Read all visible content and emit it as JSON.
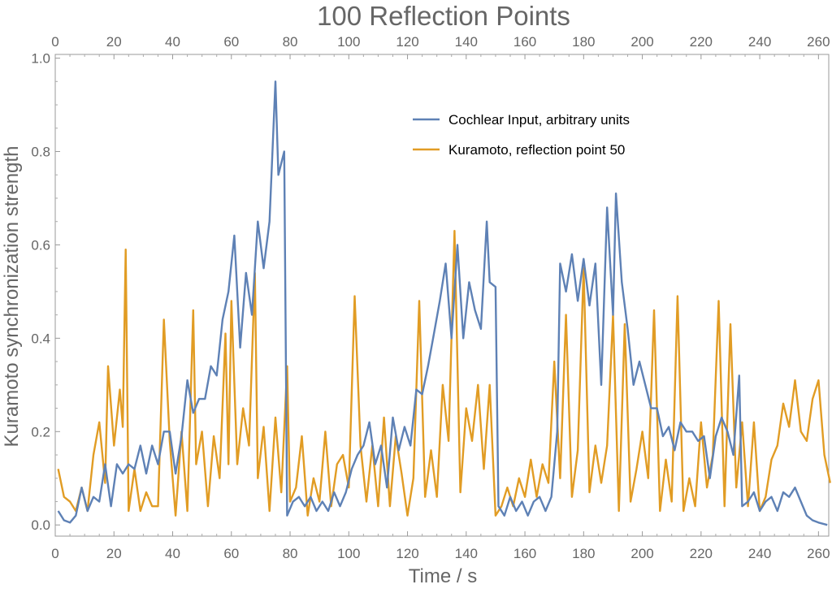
{
  "chart_data": {
    "type": "line",
    "title": "100 Reflection Points",
    "xlabel": "Time / s",
    "ylabel": "Kuramoto synchronization strength",
    "xlim": [
      0,
      263.5
    ],
    "ylim": [
      -0.024,
      1.008
    ],
    "xticks": [
      0,
      20,
      40,
      60,
      80,
      100,
      120,
      140,
      160,
      180,
      200,
      220,
      240,
      260
    ],
    "xtick_labels": [
      "0",
      "20",
      "40",
      "60",
      "80",
      "100",
      "120",
      "140",
      "160",
      "180",
      "200",
      "220",
      "240",
      "260"
    ],
    "yticks": [
      0,
      0.2,
      0.4,
      0.6,
      0.8,
      1.0
    ],
    "ytick_labels": [
      "0.0",
      "0.2",
      "0.4",
      "0.6",
      "0.8",
      "1.0"
    ],
    "grid": false,
    "legend_position": "top-center",
    "series": [
      {
        "name": "Cochlear Input, arbitrary units",
        "color": "#5e81b5",
        "x": [
          1,
          3,
          5,
          7,
          9,
          11,
          13,
          15,
          17,
          19,
          21,
          23,
          25,
          27,
          29,
          31,
          33,
          35,
          37,
          39,
          41,
          43,
          45,
          47,
          49,
          51,
          53,
          55,
          57,
          59,
          61,
          63,
          65,
          67,
          69,
          71,
          73,
          75,
          76,
          78,
          79,
          81,
          83,
          85,
          87,
          89,
          91,
          93,
          95,
          97,
          99,
          101,
          103,
          105,
          107,
          109,
          111,
          113,
          115,
          117,
          119,
          121,
          123,
          125,
          127,
          129,
          131,
          133,
          135,
          137,
          139,
          141,
          143,
          145,
          147,
          148,
          150,
          151,
          153,
          155,
          157,
          159,
          161,
          163,
          165,
          167,
          169,
          171,
          172,
          174,
          176,
          178,
          180,
          182,
          184,
          186,
          188,
          190,
          191,
          193,
          195,
          197,
          199,
          201,
          203,
          205,
          207,
          209,
          211,
          213,
          215,
          217,
          219,
          221,
          223,
          225,
          227,
          229,
          231,
          233,
          234,
          236,
          238,
          240,
          242,
          244,
          246,
          248,
          250,
          252,
          254,
          256,
          258,
          260,
          263
        ],
        "y": [
          0.03,
          0.01,
          0.005,
          0.02,
          0.08,
          0.03,
          0.06,
          0.05,
          0.13,
          0.04,
          0.13,
          0.11,
          0.13,
          0.12,
          0.17,
          0.11,
          0.17,
          0.13,
          0.2,
          0.2,
          0.11,
          0.19,
          0.31,
          0.24,
          0.27,
          0.27,
          0.34,
          0.32,
          0.44,
          0.5,
          0.62,
          0.38,
          0.54,
          0.45,
          0.65,
          0.55,
          0.65,
          0.95,
          0.75,
          0.8,
          0.02,
          0.05,
          0.06,
          0.04,
          0.06,
          0.03,
          0.05,
          0.03,
          0.07,
          0.04,
          0.07,
          0.12,
          0.15,
          0.17,
          0.22,
          0.13,
          0.17,
          0.08,
          0.23,
          0.16,
          0.21,
          0.17,
          0.29,
          0.28,
          0.34,
          0.41,
          0.48,
          0.56,
          0.4,
          0.6,
          0.4,
          0.52,
          0.46,
          0.42,
          0.65,
          0.52,
          0.51,
          0.04,
          0.02,
          0.06,
          0.03,
          0.05,
          0.02,
          0.05,
          0.06,
          0.03,
          0.06,
          0.2,
          0.56,
          0.5,
          0.58,
          0.48,
          0.57,
          0.47,
          0.56,
          0.3,
          0.68,
          0.45,
          0.71,
          0.52,
          0.42,
          0.3,
          0.35,
          0.3,
          0.25,
          0.25,
          0.19,
          0.21,
          0.16,
          0.22,
          0.2,
          0.2,
          0.18,
          0.19,
          0.1,
          0.19,
          0.23,
          0.2,
          0.15,
          0.32,
          0.04,
          0.05,
          0.07,
          0.03,
          0.05,
          0.06,
          0.03,
          0.07,
          0.06,
          0.08,
          0.05,
          0.02,
          0.01,
          0.005,
          0.0
        ]
      },
      {
        "name": "Kuramoto, reflection point 50",
        "color": "#e19c24",
        "x": [
          1,
          3,
          5,
          7,
          9,
          11,
          13,
          15,
          17,
          18,
          20,
          22,
          23,
          24,
          25,
          27,
          29,
          31,
          33,
          35,
          37,
          39,
          41,
          43,
          45,
          47,
          48,
          50,
          52,
          54,
          56,
          58,
          59,
          60,
          62,
          64,
          66,
          68,
          69,
          71,
          73,
          75,
          77,
          79,
          80,
          82,
          84,
          86,
          88,
          90,
          92,
          94,
          96,
          98,
          100,
          102,
          104,
          106,
          108,
          110,
          112,
          114,
          116,
          118,
          120,
          122,
          124,
          126,
          128,
          130,
          132,
          134,
          136,
          138,
          140,
          142,
          144,
          146,
          148,
          150,
          152,
          154,
          156,
          158,
          160,
          162,
          164,
          166,
          168,
          170,
          172,
          174,
          176,
          178,
          180,
          182,
          184,
          186,
          188,
          190,
          192,
          194,
          196,
          198,
          200,
          202,
          204,
          206,
          208,
          210,
          212,
          214,
          216,
          218,
          220,
          222,
          224,
          226,
          228,
          230,
          232,
          234,
          236,
          238,
          240,
          242,
          244,
          246,
          248,
          250,
          252,
          254,
          256,
          258,
          260,
          262,
          264
        ],
        "y": [
          0.12,
          0.06,
          0.05,
          0.03,
          0.08,
          0.03,
          0.15,
          0.22,
          0.09,
          0.34,
          0.17,
          0.29,
          0.21,
          0.59,
          0.03,
          0.12,
          0.03,
          0.07,
          0.04,
          0.04,
          0.44,
          0.18,
          0.02,
          0.2,
          0.03,
          0.46,
          0.13,
          0.2,
          0.04,
          0.19,
          0.1,
          0.41,
          0.13,
          0.48,
          0.13,
          0.25,
          0.17,
          0.54,
          0.1,
          0.21,
          0.03,
          0.23,
          0.07,
          0.34,
          0.05,
          0.08,
          0.19,
          0.02,
          0.1,
          0.05,
          0.2,
          0.04,
          0.13,
          0.15,
          0.08,
          0.49,
          0.17,
          0.05,
          0.17,
          0.04,
          0.23,
          0.04,
          0.19,
          0.11,
          0.02,
          0.1,
          0.48,
          0.06,
          0.16,
          0.06,
          0.3,
          0.18,
          0.63,
          0.07,
          0.25,
          0.18,
          0.3,
          0.12,
          0.3,
          0.02,
          0.04,
          0.08,
          0.04,
          0.1,
          0.06,
          0.14,
          0.06,
          0.13,
          0.09,
          0.35,
          0.1,
          0.45,
          0.06,
          0.16,
          0.55,
          0.07,
          0.17,
          0.09,
          0.17,
          0.45,
          0.03,
          0.43,
          0.05,
          0.12,
          0.2,
          0.1,
          0.46,
          0.03,
          0.14,
          0.05,
          0.49,
          0.03,
          0.1,
          0.04,
          0.22,
          0.08,
          0.15,
          0.48,
          0.04,
          0.43,
          0.08,
          0.22,
          0.04,
          0.22,
          0.03,
          0.06,
          0.14,
          0.17,
          0.26,
          0.21,
          0.31,
          0.2,
          0.18,
          0.27,
          0.31,
          0.15,
          0.09
        ]
      }
    ]
  }
}
